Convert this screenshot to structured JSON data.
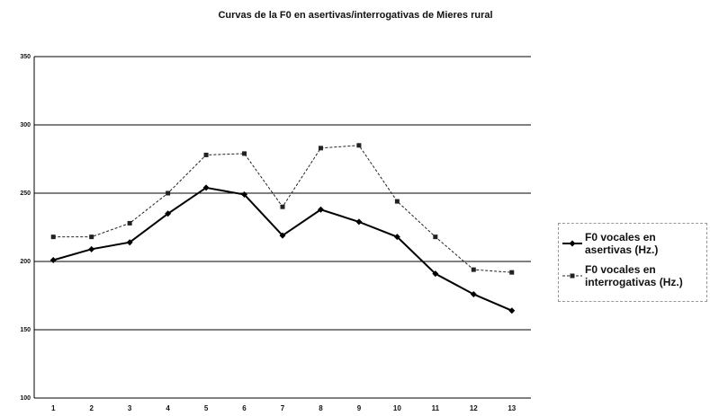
{
  "chart_data": {
    "type": "line",
    "title": "Curvas de la F0 en asertivas/interrogativas de Mieres rural",
    "categories": [
      "1",
      "2",
      "3",
      "4",
      "5",
      "6",
      "7",
      "8",
      "9",
      "10",
      "11",
      "12",
      "13"
    ],
    "series": [
      {
        "name": "F0 vocales en asertivas (Hz.)",
        "color": "#000000",
        "marker": "diamond",
        "line_style": "solid",
        "values": [
          201,
          209,
          214,
          235,
          254,
          249,
          219,
          238,
          229,
          218,
          191,
          176,
          164
        ]
      },
      {
        "name": "F0 vocales en interrogativas (Hz.)",
        "color": "#222222",
        "marker": "square",
        "line_style": "dashed",
        "values": [
          218,
          218,
          228,
          250,
          278,
          279,
          240,
          283,
          285,
          244,
          218,
          194,
          192
        ]
      }
    ],
    "ylim": [
      100,
      350
    ],
    "yticks": [
      100,
      150,
      200,
      250,
      300,
      350
    ],
    "grid": true,
    "legend": "right"
  }
}
